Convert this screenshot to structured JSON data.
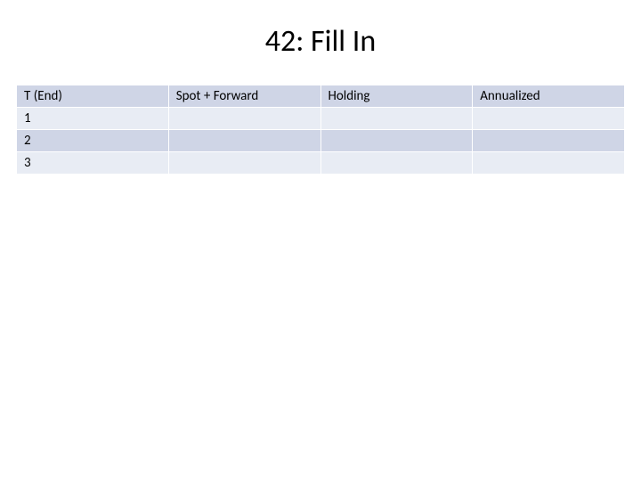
{
  "title": "42: Fill In",
  "table": {
    "type": "table",
    "columns": [
      "T (End)",
      "Spot + Forward",
      "Holding",
      "Annualized"
    ],
    "rows": [
      [
        "1",
        "",
        "",
        ""
      ],
      [
        "2",
        "",
        "",
        ""
      ],
      [
        "3",
        "",
        "",
        ""
      ]
    ],
    "header_bg_color": "#cfd5e6",
    "row_colors": [
      "#e8ecf4",
      "#cfd5e6",
      "#e8ecf4"
    ],
    "border_color": "#ffffff",
    "text_color": "#000000",
    "font_size": 15,
    "column_count": 4
  },
  "title_style": {
    "font_size": 34,
    "color": "#000000",
    "align": "center"
  },
  "background_color": "#ffffff"
}
